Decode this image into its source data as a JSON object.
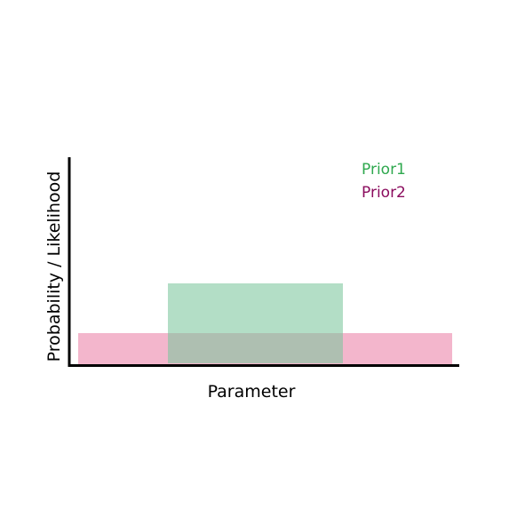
{
  "axes": {
    "ylabel": "Probability / Likelihood",
    "xlabel": "Parameter"
  },
  "legend": {
    "prior1": "Prior1",
    "prior2": "Prior2"
  },
  "colors": {
    "prior1_fill": "#9fd8b6",
    "prior1_text": "#2ea84e",
    "prior2_fill": "#ef9dbb",
    "prior2_text": "#8b0c5e",
    "axis": "#000000"
  }
}
